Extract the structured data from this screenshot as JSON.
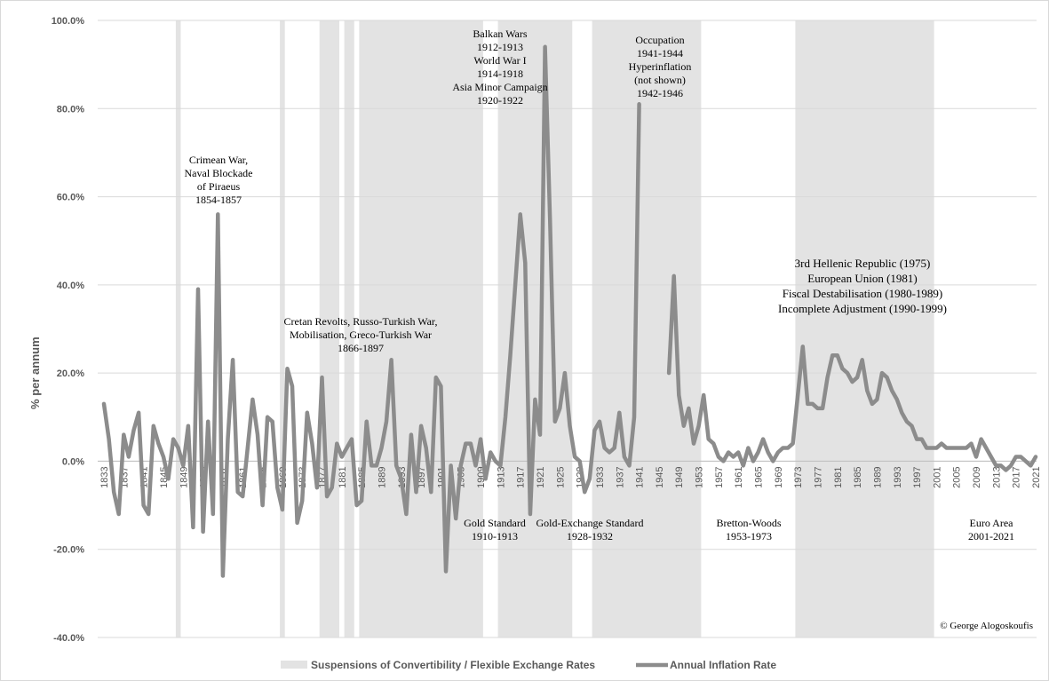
{
  "chart_data": {
    "type": "line",
    "ylabel": "% per annum",
    "y_ticks": [
      "100.0%",
      "80.0%",
      "60.0%",
      "40.0%",
      "20.0%",
      "0.0%",
      "-20.0%",
      "-40.0%"
    ],
    "ylim": [
      -40,
      100
    ],
    "xlim": [
      1833,
      2021
    ],
    "x_ticks": [
      "1833",
      "1837",
      "1841",
      "1845",
      "1849",
      "1853",
      "1857",
      "1861",
      "1865",
      "1869",
      "1873",
      "1877",
      "1881",
      "1885",
      "1889",
      "1893",
      "1897",
      "1901",
      "1905",
      "1909",
      "1913",
      "1917",
      "1921",
      "1925",
      "1929",
      "1933",
      "1937",
      "1941",
      "1945",
      "1949",
      "1953",
      "1957",
      "1961",
      "1965",
      "1969",
      "1973",
      "1977",
      "1981",
      "1985",
      "1989",
      "1993",
      "1997",
      "2001",
      "2005",
      "2009",
      "2013",
      "2017",
      "2021"
    ],
    "grid": "horizontal",
    "legend_position": "bottom",
    "shaded_periods": [
      [
        1848,
        1848
      ],
      [
        1869,
        1869
      ],
      [
        1877,
        1880
      ],
      [
        1882,
        1883
      ],
      [
        1885,
        1909
      ],
      [
        1913,
        1927
      ],
      [
        1932,
        1953
      ],
      [
        1973,
        2000
      ]
    ],
    "series": [
      {
        "name": "Annual Inflation Rate",
        "color": "#8c8c8c",
        "segments": [
          [
            [
              1833,
              13
            ],
            [
              1834,
              5
            ],
            [
              1835,
              -7
            ],
            [
              1836,
              -12
            ],
            [
              1837,
              6
            ],
            [
              1838,
              1
            ],
            [
              1839,
              7
            ],
            [
              1840,
              11
            ],
            [
              1841,
              -10
            ],
            [
              1842,
              -12
            ],
            [
              1843,
              8
            ],
            [
              1844,
              4
            ],
            [
              1845,
              1
            ],
            [
              1846,
              -4
            ],
            [
              1847,
              5
            ],
            [
              1848,
              3
            ],
            [
              1849,
              -1
            ],
            [
              1850,
              8
            ],
            [
              1851,
              -15
            ],
            [
              1852,
              39
            ],
            [
              1853,
              -16
            ],
            [
              1854,
              9
            ],
            [
              1855,
              -12
            ],
            [
              1856,
              56
            ],
            [
              1857,
              -26
            ],
            [
              1858,
              5
            ],
            [
              1859,
              23
            ],
            [
              1860,
              -7
            ],
            [
              1861,
              -8
            ],
            [
              1862,
              3
            ],
            [
              1863,
              14
            ],
            [
              1864,
              6
            ],
            [
              1865,
              -10
            ],
            [
              1866,
              10
            ],
            [
              1867,
              9
            ],
            [
              1868,
              -6
            ],
            [
              1869,
              -11
            ],
            [
              1870,
              21
            ],
            [
              1871,
              17
            ],
            [
              1872,
              -14
            ],
            [
              1873,
              -9
            ],
            [
              1874,
              11
            ],
            [
              1875,
              4
            ],
            [
              1876,
              -6
            ],
            [
              1877,
              19
            ],
            [
              1878,
              -8
            ],
            [
              1879,
              -6
            ],
            [
              1880,
              4
            ],
            [
              1881,
              1
            ],
            [
              1882,
              3
            ],
            [
              1883,
              5
            ],
            [
              1884,
              -10
            ],
            [
              1885,
              -9
            ],
            [
              1886,
              9
            ],
            [
              1887,
              -1
            ],
            [
              1888,
              -1
            ],
            [
              1889,
              3
            ],
            [
              1890,
              9
            ],
            [
              1891,
              23
            ],
            [
              1892,
              -1
            ],
            [
              1893,
              -4
            ],
            [
              1894,
              -12
            ],
            [
              1895,
              6
            ],
            [
              1896,
              -7
            ],
            [
              1897,
              8
            ],
            [
              1898,
              3
            ],
            [
              1899,
              -7
            ],
            [
              1900,
              19
            ],
            [
              1901,
              17
            ],
            [
              1902,
              -25
            ],
            [
              1903,
              -1
            ],
            [
              1904,
              -13
            ],
            [
              1905,
              -1
            ],
            [
              1906,
              4
            ],
            [
              1907,
              4
            ],
            [
              1908,
              -1
            ],
            [
              1909,
              5
            ],
            [
              1910,
              -4
            ],
            [
              1911,
              2
            ],
            [
              1912,
              0
            ],
            [
              1913,
              -1
            ],
            [
              1914,
              10
            ],
            [
              1915,
              24
            ],
            [
              1916,
              40
            ],
            [
              1917,
              56
            ],
            [
              1918,
              45
            ],
            [
              1919,
              -12
            ],
            [
              1920,
              14
            ],
            [
              1921,
              6
            ],
            [
              1922,
              94
            ],
            [
              1923,
              55
            ],
            [
              1924,
              9
            ],
            [
              1925,
              12
            ],
            [
              1926,
              20
            ],
            [
              1927,
              8
            ],
            [
              1928,
              1
            ],
            [
              1929,
              0
            ],
            [
              1930,
              -7
            ],
            [
              1931,
              -4
            ],
            [
              1932,
              7
            ],
            [
              1933,
              9
            ],
            [
              1934,
              3
            ],
            [
              1935,
              2
            ],
            [
              1936,
              3
            ],
            [
              1937,
              11
            ],
            [
              1938,
              1
            ],
            [
              1939,
              -1
            ],
            [
              1940,
              10
            ],
            [
              1941,
              81
            ]
          ],
          [
            [
              1947,
              20
            ],
            [
              1948,
              42
            ],
            [
              1949,
              15
            ],
            [
              1950,
              8
            ],
            [
              1951,
              12
            ],
            [
              1952,
              4
            ],
            [
              1953,
              8
            ],
            [
              1954,
              15
            ],
            [
              1955,
              5
            ],
            [
              1956,
              4
            ],
            [
              1957,
              1
            ],
            [
              1958,
              0
            ],
            [
              1959,
              2
            ],
            [
              1960,
              1
            ],
            [
              1961,
              2
            ],
            [
              1962,
              -1
            ],
            [
              1963,
              3
            ],
            [
              1964,
              0
            ],
            [
              1965,
              2
            ],
            [
              1966,
              5
            ],
            [
              1967,
              2
            ],
            [
              1968,
              0
            ],
            [
              1969,
              2
            ],
            [
              1970,
              3
            ],
            [
              1971,
              3
            ],
            [
              1972,
              4
            ],
            [
              1973,
              15
            ],
            [
              1974,
              26
            ],
            [
              1975,
              13
            ],
            [
              1976,
              13
            ],
            [
              1977,
              12
            ],
            [
              1978,
              12
            ],
            [
              1979,
              19
            ],
            [
              1980,
              24
            ],
            [
              1981,
              24
            ],
            [
              1982,
              21
            ],
            [
              1983,
              20
            ],
            [
              1984,
              18
            ],
            [
              1985,
              19
            ],
            [
              1986,
              23
            ],
            [
              1987,
              16
            ],
            [
              1988,
              13
            ],
            [
              1989,
              14
            ],
            [
              1990,
              20
            ],
            [
              1991,
              19
            ],
            [
              1992,
              16
            ],
            [
              1993,
              14
            ],
            [
              1994,
              11
            ],
            [
              1995,
              9
            ],
            [
              1996,
              8
            ],
            [
              1997,
              5
            ],
            [
              1998,
              5
            ],
            [
              1999,
              3
            ],
            [
              2000,
              3
            ],
            [
              2001,
              3
            ],
            [
              2002,
              4
            ],
            [
              2003,
              3
            ],
            [
              2004,
              3
            ],
            [
              2005,
              3
            ],
            [
              2006,
              3
            ],
            [
              2007,
              3
            ],
            [
              2008,
              4
            ],
            [
              2009,
              1
            ],
            [
              2010,
              5
            ],
            [
              2011,
              3
            ],
            [
              2012,
              1
            ],
            [
              2013,
              -1
            ],
            [
              2014,
              -1
            ],
            [
              2015,
              -2
            ],
            [
              2016,
              -1
            ],
            [
              2017,
              1
            ],
            [
              2018,
              1
            ],
            [
              2019,
              0
            ],
            [
              2020,
              -1
            ],
            [
              2021,
              1
            ]
          ]
        ]
      },
      {
        "name": "Suspensions of Convertibility / Flexible Exchange Rates",
        "color": "#e3e3e3"
      }
    ],
    "annotations": [
      {
        "lines": [
          "Crimean War,",
          "Naval Blockade",
          "of Piraeus",
          "1854-1857"
        ]
      },
      {
        "lines": [
          "Cretan Revolts, Russo-Turkish War,",
          "Mobilisation, Greco-Turkish War",
          "1866-1897"
        ]
      },
      {
        "lines": [
          "Balkan Wars",
          "1912-1913",
          "World War I",
          "1914-1918",
          "Asia Minor Campaign",
          "1920-1922"
        ]
      },
      {
        "lines": [
          "Occupation",
          "1941-1944",
          "Hyperinflation",
          "(not shown)",
          "1942-1946"
        ]
      },
      {
        "lines": [
          "3rd Hellenic Republic (1975)",
          "European Union (1981)",
          "Fiscal Destabilisation (1980-1989)",
          "Incomplete Adjustment (1990-1999)"
        ]
      },
      {
        "lines": [
          "Gold Standard",
          "1910-1913"
        ]
      },
      {
        "lines": [
          "Gold-Exchange Standard",
          "1928-1932"
        ]
      },
      {
        "lines": [
          "Bretton-Woods",
          "1953-1973"
        ]
      },
      {
        "lines": [
          "Euro Area",
          "2001-2021"
        ]
      }
    ],
    "copyright": "© George Alogoskoufis"
  }
}
